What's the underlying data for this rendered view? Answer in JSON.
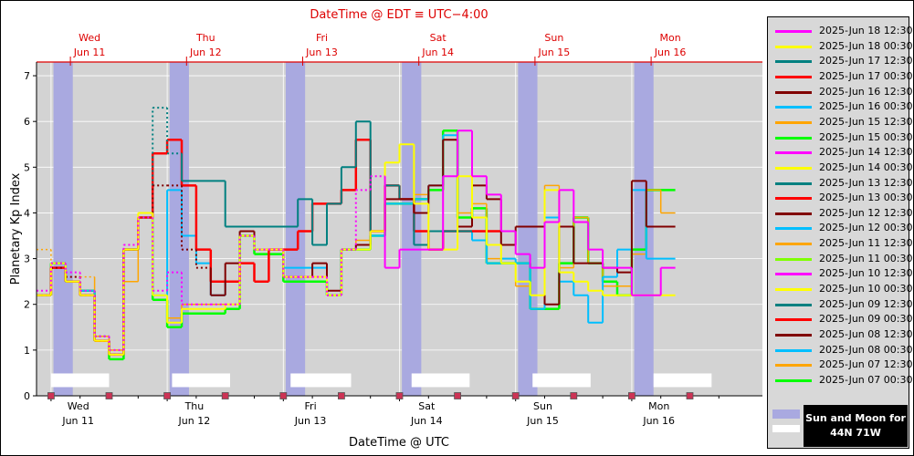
{
  "top_title": "DateTime @ EDT ≡ UTC−4:00",
  "bottom_title": "DateTime @ UTC",
  "colors": {
    "plot_bg": "#d3d3d3",
    "sun_band": "#a9a9e0",
    "top_axis": "#dd0000",
    "marker": "#cc3355"
  },
  "top_ticks": [
    {
      "day": "Wed",
      "date": "Jun 11"
    },
    {
      "day": "Thu",
      "date": "Jun 12"
    },
    {
      "day": "Fri",
      "date": "Jun 13"
    },
    {
      "day": "Sat",
      "date": "Jun 14"
    },
    {
      "day": "Sun",
      "date": "Jun 15"
    },
    {
      "day": "Mon",
      "date": "Jun 16"
    }
  ],
  "bottom_ticks": [
    {
      "day": "Wed",
      "date": "Jun 11"
    },
    {
      "day": "Thu",
      "date": "Jun 12"
    },
    {
      "day": "Fri",
      "date": "Jun 13"
    },
    {
      "day": "Sat",
      "date": "Jun 14"
    },
    {
      "day": "Sun",
      "date": "Jun 15"
    },
    {
      "day": "Mon",
      "date": "Jun 16"
    }
  ],
  "legend": {
    "entries": [
      {
        "label": "2025-Jun 18 12:30",
        "color": "#ff00ff"
      },
      {
        "label": "2025-Jun 18 00:30",
        "color": "#ffff00"
      },
      {
        "label": "2025-Jun 17 12:30",
        "color": "#008080"
      },
      {
        "label": "2025-Jun 17 00:30",
        "color": "#ff0000"
      },
      {
        "label": "2025-Jun 16 12:30",
        "color": "#800000"
      },
      {
        "label": "2025-Jun 16 00:30",
        "color": "#00bfff"
      },
      {
        "label": "2025-Jun 15 12:30",
        "color": "#ffa500"
      },
      {
        "label": "2025-Jun 15 00:30",
        "color": "#00ff00"
      },
      {
        "label": "2025-Jun 14 12:30",
        "color": "#ff00ff"
      },
      {
        "label": "2025-Jun 14 00:30",
        "color": "#ffff00"
      },
      {
        "label": "2025-Jun 13 12:30",
        "color": "#008080"
      },
      {
        "label": "2025-Jun 13 00:30",
        "color": "#ff0000"
      },
      {
        "label": "2025-Jun 12 12:30",
        "color": "#800000"
      },
      {
        "label": "2025-Jun 12 00:30",
        "color": "#00bfff"
      },
      {
        "label": "2025-Jun 11 12:30",
        "color": "#ffa500"
      },
      {
        "label": "2025-Jun 11 00:30",
        "color": "#7fff00"
      },
      {
        "label": "2025-Jun 10 12:30",
        "color": "#ff00ff"
      },
      {
        "label": "2025-Jun 10 00:30",
        "color": "#ffff00"
      },
      {
        "label": "2025-Jun 09 12:30",
        "color": "#008080"
      },
      {
        "label": "2025-Jun 09 00:30",
        "color": "#ff0000"
      },
      {
        "label": "2025-Jun 08 12:30",
        "color": "#800000"
      },
      {
        "label": "2025-Jun 08 00:30",
        "color": "#00bfff"
      },
      {
        "label": "2025-Jun 07 12:30",
        "color": "#ffa500"
      },
      {
        "label": "2025-Jun 07 00:30",
        "color": "#00ff00"
      }
    ]
  },
  "sun_moon_badge": {
    "line1": "Sun and Moon for",
    "line2": "44N 71W"
  },
  "chart_data": {
    "type": "line",
    "step": true,
    "ylabel": "Planetary Kp Index",
    "xlabel": "DateTime @ UTC",
    "ylim": [
      0,
      7.3
    ],
    "yticks": [
      0,
      1,
      2,
      3,
      4,
      5,
      6,
      7
    ],
    "xlim": [
      "2025-06-10 21:00",
      "2025-06-17 03:00"
    ],
    "grid": true,
    "legend_position": "right",
    "sun_bands": [
      [
        "2025-06-11 00:30",
        "2025-06-11 04:30"
      ],
      [
        "2025-06-12 00:30",
        "2025-06-12 04:30"
      ],
      [
        "2025-06-13 00:30",
        "2025-06-13 04:30"
      ],
      [
        "2025-06-14 00:30",
        "2025-06-14 04:30"
      ],
      [
        "2025-06-15 00:30",
        "2025-06-15 04:30"
      ],
      [
        "2025-06-16 00:30",
        "2025-06-16 04:30"
      ]
    ],
    "moon_bars": [
      [
        "2025-06-11 00:00",
        "2025-06-11 12:00"
      ],
      [
        "2025-06-12 01:00",
        "2025-06-12 13:00"
      ],
      [
        "2025-06-13 01:30",
        "2025-06-13 14:00"
      ],
      [
        "2025-06-14 02:30",
        "2025-06-14 14:30"
      ],
      [
        "2025-06-15 03:30",
        "2025-06-15 15:30"
      ],
      [
        "2025-06-16 04:30",
        "2025-06-16 16:30"
      ]
    ],
    "markers": [
      "2025-06-11 00:00",
      "2025-06-11 12:00",
      "2025-06-12 00:00",
      "2025-06-12 12:00",
      "2025-06-13 00:00",
      "2025-06-13 12:00",
      "2025-06-14 00:00",
      "2025-06-14 12:00",
      "2025-06-15 00:00",
      "2025-06-15 12:00",
      "2025-06-16 00:00",
      "2025-06-16 12:00"
    ],
    "series": [
      {
        "name": "2025-Jun 07 00:30",
        "color": "#00ff00",
        "width": 2.5,
        "start": "2025-06-10 21:00",
        "values": [
          2.2,
          2.9,
          2.5,
          2.3,
          1.2,
          0.8,
          3.2,
          3.9,
          2.1,
          1.5,
          1.8,
          1.8,
          1.8,
          1.9,
          3.5,
          3.1,
          3.1,
          2.5,
          2.5,
          2.5,
          2.2,
          3.2,
          3.2,
          3.5,
          4.2,
          4.2,
          4.3,
          4.5,
          5.8,
          3.9,
          4.1,
          2.9,
          2.9,
          2.9,
          1.9,
          1.9,
          2.9,
          3.9,
          2.9,
          2.5,
          2.2,
          3.2,
          4.5,
          4.5
        ]
      },
      {
        "name": "2025-Jun 07 12:30",
        "color": "#ffa500",
        "width": 1.5,
        "start": "2025-06-10 21:00",
        "values": [
          3.2,
          2.9,
          2.6,
          2.6,
          1.3,
          1.0,
          2.5,
          3.9,
          2.2,
          1.7,
          2.0,
          2.0,
          2.0,
          2.0,
          3.5,
          3.2,
          3.2,
          2.6,
          2.6,
          2.6,
          2.3,
          3.2,
          3.4,
          3.5,
          4.2,
          4.2,
          4.4,
          4.6,
          5.7,
          4.0,
          4.2,
          3.0,
          3.0,
          2.4,
          1.9,
          4.6,
          2.8,
          3.9,
          2.9,
          2.4,
          2.4,
          3.1,
          4.5,
          4.0
        ],
        "dashed_until": 4
      },
      {
        "name": "2025-Jun 08 00:30",
        "color": "#00bfff",
        "width": 2.0,
        "start": "2025-06-10 21:00",
        "values": [
          2.2,
          2.9,
          2.5,
          2.3,
          1.2,
          0.9,
          3.2,
          3.9,
          2.2,
          4.5,
          3.5,
          2.9,
          2.2,
          2.5,
          3.5,
          3.2,
          3.2,
          2.8,
          2.8,
          2.8,
          2.2,
          3.2,
          3.2,
          3.5,
          4.2,
          4.2,
          4.3,
          4.6,
          5.7,
          3.6,
          3.4,
          2.9,
          3.0,
          2.9,
          1.9,
          3.9,
          2.5,
          2.2,
          1.6,
          2.6,
          3.2,
          4.5,
          3.0,
          3.0
        ]
      },
      {
        "name": "2025-Jun 09 00:30",
        "color": "#ff0000",
        "width": 2.5,
        "start": "2025-06-10 21:00",
        "values": [
          2.2,
          2.8,
          2.5,
          2.2,
          1.2,
          0.9,
          3.2,
          3.9,
          5.3,
          5.6,
          4.6,
          3.2,
          2.5,
          2.5,
          2.9,
          2.5,
          3.2,
          3.2,
          3.6,
          4.2,
          4.2,
          4.5,
          5.6,
          3.6,
          4.6,
          4.3,
          3.6,
          3.2,
          3.6,
          3.6,
          3.6,
          3.6
        ]
      },
      {
        "name": "2025-Jun 09 12:30",
        "color": "#008080",
        "width": 2.0,
        "start": "2025-06-10 21:00",
        "values": [
          2.2,
          2.9,
          2.5,
          2.2,
          1.3,
          0.9,
          3.2,
          3.9,
          6.3,
          5.3,
          4.7,
          4.7,
          4.7,
          3.7,
          3.7,
          3.7,
          3.7,
          3.7,
          4.3,
          3.3,
          4.2,
          5.0,
          6.0,
          3.6,
          4.6,
          4.3,
          3.3,
          3.6,
          3.6,
          3.6
        ],
        "dashed_until": 10
      },
      {
        "name": "2025-Jun 11 12:30",
        "color": "#800000",
        "width": 2.0,
        "start": "2025-06-10 21:00",
        "values": [
          2.2,
          2.8,
          2.6,
          2.2,
          1.2,
          0.9,
          3.2,
          3.9,
          4.6,
          4.6,
          3.2,
          2.8,
          2.2,
          2.9,
          3.6,
          3.2,
          3.2,
          2.6,
          2.6,
          2.9,
          2.3,
          3.2,
          3.3,
          3.6,
          4.3,
          4.3,
          4.0,
          4.6,
          5.6,
          3.7,
          4.6,
          4.3,
          3.3,
          3.7,
          3.7,
          2.0,
          3.7,
          2.9,
          2.9,
          2.8,
          2.7,
          4.7,
          3.7,
          3.7
        ],
        "dashed_until": 12
      },
      {
        "name": "2025-Jun 14 00:30",
        "color": "#ffff00",
        "width": 2.0,
        "start": "2025-06-10 21:00",
        "values": [
          2.2,
          2.9,
          2.5,
          2.2,
          1.2,
          0.9,
          3.2,
          4.0,
          2.2,
          1.6,
          1.9,
          1.9,
          1.9,
          2.0,
          3.5,
          3.2,
          3.2,
          2.6,
          2.6,
          2.6,
          2.2,
          3.2,
          3.2,
          3.6,
          5.1,
          5.5,
          4.2,
          3.2,
          3.2,
          4.8,
          3.9,
          3.3,
          2.9,
          2.5,
          2.2,
          4.5,
          2.7,
          2.5,
          2.3,
          2.2,
          2.2,
          2.2,
          2.2,
          2.2
        ]
      },
      {
        "name": "2025-Jun 18 12:30",
        "color": "#ff00ff",
        "width": 2.0,
        "start": "2025-06-10 21:00",
        "values": [
          2.3,
          2.9,
          2.7,
          2.3,
          1.3,
          1.0,
          3.3,
          3.9,
          2.3,
          2.7,
          2.0,
          2.0,
          2.0,
          2.0,
          3.5,
          3.2,
          3.2,
          2.6,
          2.6,
          2.6,
          2.2,
          3.2,
          4.5,
          4.8,
          2.8,
          3.2,
          3.2,
          3.2,
          4.8,
          5.8,
          4.8,
          4.4,
          3.6,
          3.1,
          2.8,
          3.8,
          4.5,
          3.8,
          3.2,
          2.8,
          2.8,
          2.2,
          2.2,
          2.8
        ],
        "dashed_until": 24
      }
    ]
  }
}
